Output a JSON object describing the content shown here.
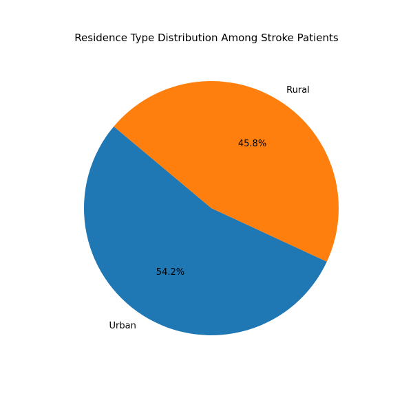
{
  "chart_data": {
    "type": "pie",
    "title": "Residence Type Distribution Among Stroke Patients",
    "categories": [
      "Urban",
      "Rural"
    ],
    "values": [
      54.2,
      45.8
    ],
    "value_labels": [
      "54.2%",
      "45.8%"
    ],
    "colors": [
      "#1f77b4",
      "#ff7f0e"
    ],
    "start_angle_deg": 140,
    "direction": "counterclockwise",
    "legend": "none"
  }
}
